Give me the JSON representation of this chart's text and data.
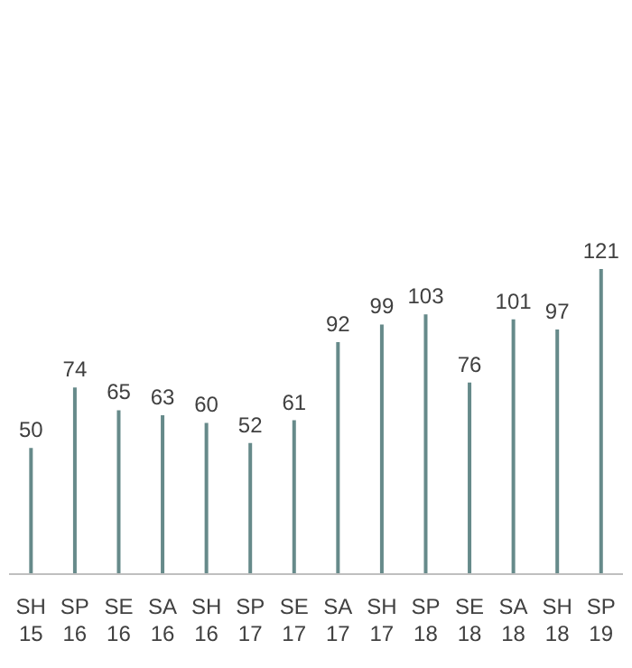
{
  "chart_data": {
    "type": "bar",
    "categories": [
      "SH\n15",
      "SP\n16",
      "SE\n16",
      "SA\n16",
      "SH\n16",
      "SP\n17",
      "SE\n17",
      "SA\n17",
      "SH\n17",
      "SP\n18",
      "SE\n18",
      "SA\n18",
      "SH\n18",
      "SP\n19"
    ],
    "values": [
      50,
      74,
      65,
      63,
      60,
      52,
      61,
      92,
      99,
      103,
      76,
      101,
      97,
      121
    ],
    "color": "#668a8a",
    "data_labels": true,
    "grid": false,
    "legend": false
  }
}
